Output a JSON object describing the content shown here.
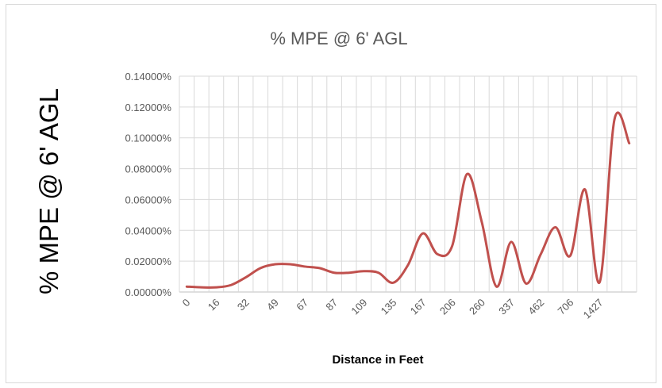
{
  "chart_data": {
    "type": "line",
    "title": "% MPE @ 6'  AGL",
    "ylabel": "% MPE @ 6'  AGL",
    "xlabel": "Distance  in Feet",
    "ylim": [
      0,
      0.14
    ],
    "y_ticks": [
      "0.00000%",
      "0.02000%",
      "0.04000%",
      "0.06000%",
      "0.08000%",
      "0.10000%",
      "0.12000%",
      "0.14000%"
    ],
    "y_tick_values": [
      0,
      0.02,
      0.04,
      0.06,
      0.08,
      0.1,
      0.12,
      0.14
    ],
    "x_tick_labels": [
      "0",
      "16",
      "32",
      "49",
      "67",
      "87",
      "109",
      "135",
      "167",
      "206",
      "260",
      "337",
      "462",
      "706",
      "1427"
    ],
    "grid": true,
    "legend": "none",
    "series": [
      {
        "color": "#c0504d",
        "values": [
          0.0035,
          0.003,
          0.003,
          0.0045,
          0.0095,
          0.0155,
          0.018,
          0.018,
          0.0165,
          0.0155,
          0.0125,
          0.0125,
          0.0135,
          0.0125,
          0.006,
          0.0175,
          0.038,
          0.0245,
          0.03,
          0.0765,
          0.0455,
          0.0035,
          0.0325,
          0.0055,
          0.0245,
          0.042,
          0.0235,
          0.0665,
          0.0065,
          0.112,
          0.0965
        ]
      }
    ]
  }
}
